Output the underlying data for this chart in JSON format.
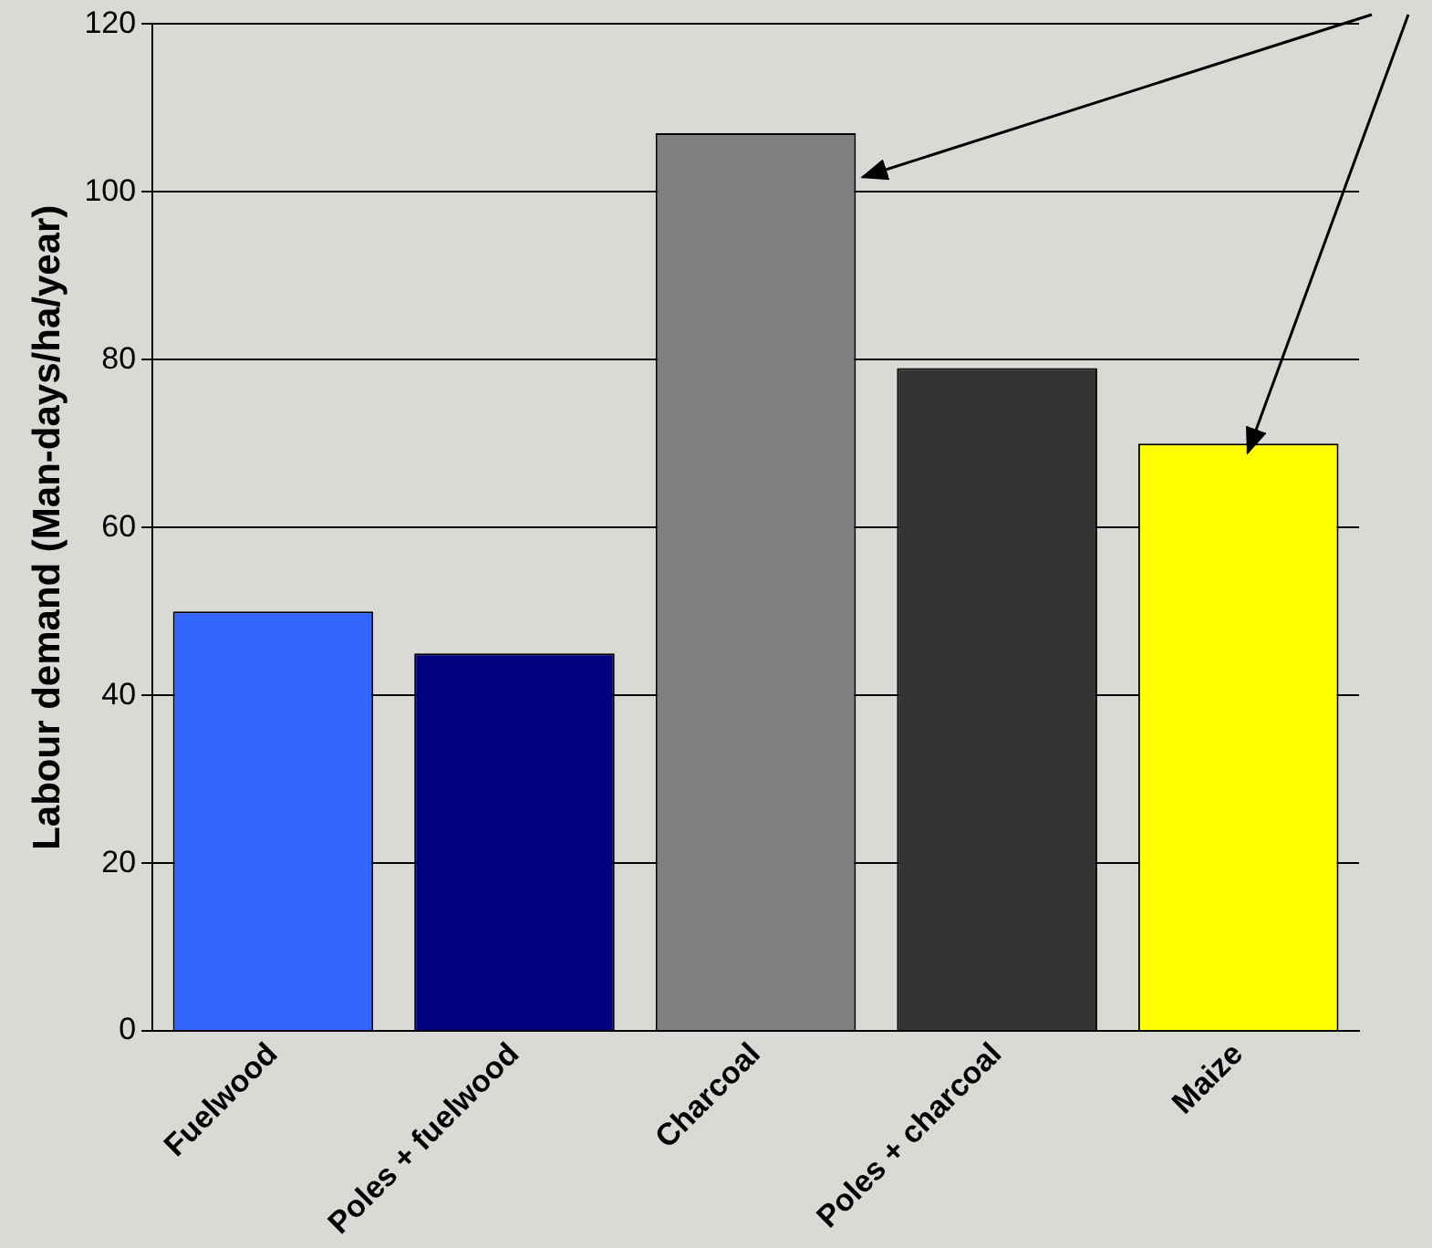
{
  "chart_data": {
    "type": "bar",
    "ylabel": "Labour demand (Man-days/ha/year)",
    "categories": [
      "Fuelwood",
      "Poles + fuelwood",
      "Charcoal",
      "Poles + charcoal",
      "Maize"
    ],
    "values": [
      50,
      45,
      107,
      79,
      70
    ],
    "colors": [
      "#3366ff",
      "#000080",
      "#808080",
      "#333333",
      "#ffff00"
    ],
    "ylim": [
      0,
      120
    ],
    "yticks": [
      0,
      20,
      40,
      60,
      80,
      100,
      120
    ],
    "grid": "y",
    "legend": false
  }
}
